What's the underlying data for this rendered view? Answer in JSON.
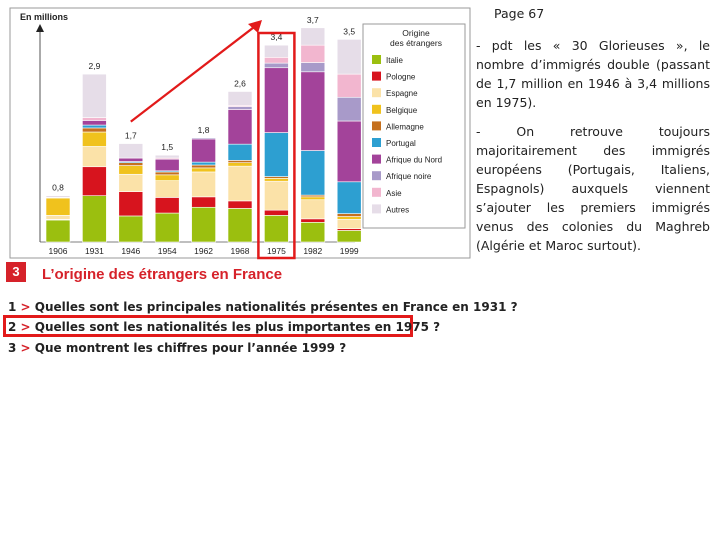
{
  "page_label": "Page 67",
  "notes": [
    "- pdt les « 30 Glorieuses », le nombre d’immigrés double (passant de 1,7 million en 1946 à 3,4 millions en 1975).",
    "- On retrouve toujours majoritairement des immigrés européens (Portugais, Italiens, Espagnols) auxquels viennent s’ajouter les premiers immigrés venus des colonies du Maghreb (Algérie et Maroc surtout)."
  ],
  "document": {
    "number": "3",
    "title": "L’origine des étrangers en France",
    "questions": [
      {
        "num": "1",
        "arrow": ">",
        "text": "Quelles sont les principales nationalités présentes en France en 1931 ?"
      },
      {
        "num": "2",
        "arrow": ">",
        "text": "Quelles sont les nationalités les plus importantes en 1975 ?"
      },
      {
        "num": "3",
        "arrow": ">",
        "text": "Que montrent les chiffres pour l’année 1999 ?"
      }
    ]
  },
  "colors": {
    "accent_red": "#d6222a",
    "highlight": "#e21a1a",
    "Italie": "#9bbf0f",
    "Pologne": "#d7141e",
    "Espagne": "#fbe2a8",
    "Belgique": "#f0c21d",
    "Allemagne": "#c5701e",
    "Portugal": "#2d9fd1",
    "Afrique du Nord": "#a3439a",
    "Afrique noire": "#a89ac9",
    "Asie": "#f2b6cf",
    "Autres": "#e6dde8"
  },
  "chart_data": {
    "type": "bar",
    "stacked": true,
    "ylabel": "En millions",
    "legend_title": "Origine des étrangers",
    "legend_position": "right",
    "ylim": [
      0,
      3.8
    ],
    "categories": [
      "1906",
      "1931",
      "1946",
      "1954",
      "1962",
      "1968",
      "1975",
      "1982",
      "1999"
    ],
    "totals": [
      0.8,
      2.9,
      1.7,
      1.5,
      1.8,
      2.6,
      3.4,
      3.7,
      3.5
    ],
    "total_labels": [
      "0,8",
      "2,9",
      "1,7",
      "1,5",
      "1,8",
      "2,6",
      "3,4",
      "3,7",
      "3,5"
    ],
    "series": [
      {
        "name": "Italie",
        "values": [
          0.38,
          0.8,
          0.45,
          0.5,
          0.6,
          0.58,
          0.46,
          0.34,
          0.2
        ]
      },
      {
        "name": "Pologne",
        "values": [
          0.01,
          0.5,
          0.42,
          0.27,
          0.18,
          0.13,
          0.09,
          0.06,
          0.03
        ]
      },
      {
        "name": "Espagne",
        "values": [
          0.07,
          0.35,
          0.3,
          0.29,
          0.43,
          0.6,
          0.5,
          0.33,
          0.16
        ]
      },
      {
        "name": "Belgique",
        "values": [
          0.3,
          0.25,
          0.15,
          0.1,
          0.07,
          0.06,
          0.05,
          0.05,
          0.05
        ]
      },
      {
        "name": "Allemagne",
        "values": [
          0.01,
          0.07,
          0.05,
          0.05,
          0.05,
          0.04,
          0.03,
          0.03,
          0.05
        ]
      },
      {
        "name": "Portugal",
        "values": [
          0.0,
          0.05,
          0.02,
          0.02,
          0.05,
          0.28,
          0.76,
          0.77,
          0.55
        ]
      },
      {
        "name": "Afrique du Nord",
        "values": [
          0.0,
          0.08,
          0.06,
          0.2,
          0.4,
          0.6,
          1.12,
          1.36,
          1.05
        ]
      },
      {
        "name": "Afrique noire",
        "values": [
          0.0,
          0.0,
          0.0,
          0.0,
          0.02,
          0.05,
          0.08,
          0.16,
          0.41
        ]
      },
      {
        "name": "Asie",
        "values": [
          0.0,
          0.05,
          0.0,
          0.02,
          0.0,
          0.02,
          0.1,
          0.3,
          0.4
        ]
      },
      {
        "name": "Autres",
        "values": [
          0.03,
          0.75,
          0.25,
          0.05,
          0.0,
          0.24,
          0.21,
          0.3,
          0.6
        ]
      }
    ]
  }
}
